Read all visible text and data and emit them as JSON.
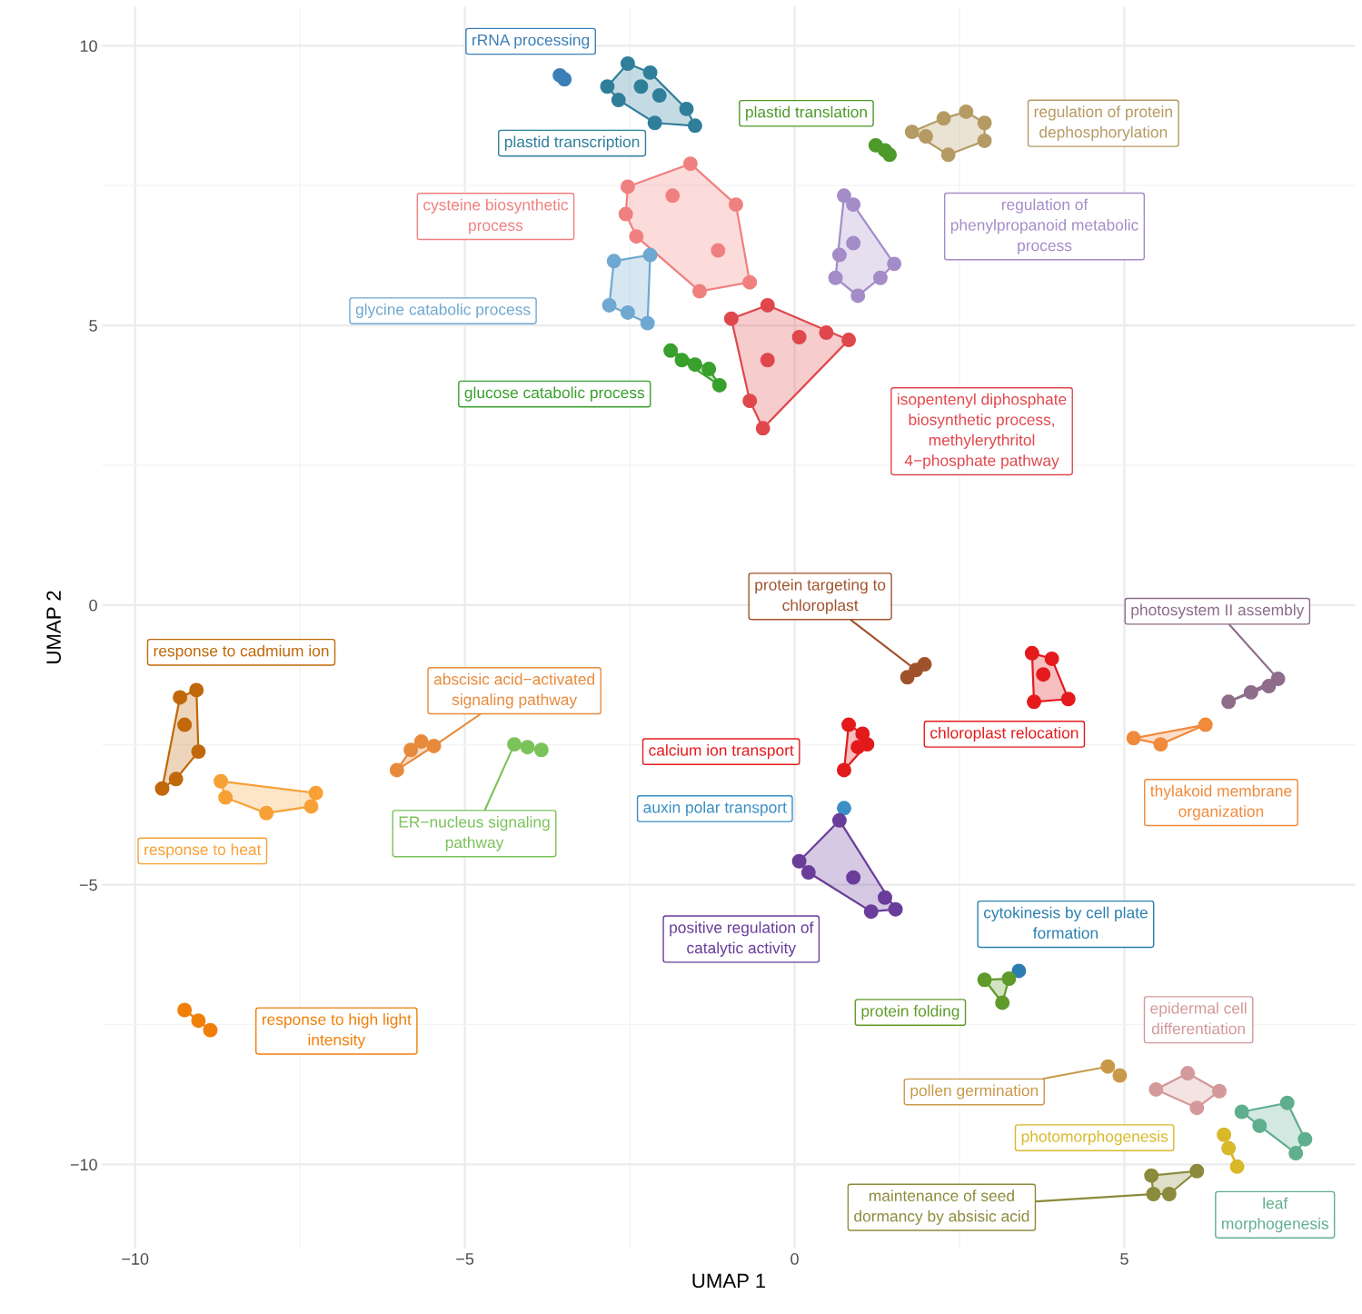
{
  "chart_data": {
    "type": "scatter",
    "xlabel": "UMAP 1",
    "ylabel": "UMAP 2",
    "xlim": [
      -10.5,
      8.5
    ],
    "ylim": [
      -11.5,
      10.7
    ],
    "xticks": [
      {
        "value": -10,
        "label": "−10"
      },
      {
        "value": -5,
        "label": "−5"
      },
      0,
      5
    ],
    "yticks": [
      {
        "value": -10,
        "label": "−10"
      },
      {
        "value": -5,
        "label": "−5"
      },
      0,
      5,
      10
    ],
    "grid": true,
    "legend": false,
    "marker": "circle",
    "series": [
      {
        "color": "#3b7fb8",
        "x": [
          -3.56,
          -3.49
        ],
        "values": [
          9.47,
          9.4
        ]
      },
      {
        "color": "#2f7f9a",
        "x": [
          -2.84,
          -2.53,
          -2.19,
          -2.05,
          -1.64,
          -1.51,
          -2.12,
          -2.67,
          -2.33
        ],
        "values": [
          9.27,
          9.68,
          9.52,
          9.11,
          8.87,
          8.57,
          8.62,
          9.03,
          9.27
        ]
      },
      {
        "color": "#4d9a2a",
        "x": [
          1.23,
          1.37,
          1.44
        ],
        "values": [
          8.22,
          8.13,
          8.05
        ]
      },
      {
        "color": "#b59a63",
        "x": [
          1.78,
          2.26,
          2.6,
          2.88,
          2.88,
          2.33,
          1.99
        ],
        "values": [
          8.46,
          8.7,
          8.82,
          8.62,
          8.3,
          8.05,
          8.38
        ]
      },
      {
        "color": "#f0807f",
        "x": [
          -2.53,
          -1.58,
          -0.89,
          -0.68,
          -1.44,
          -2.4,
          -2.56,
          -1.85,
          -1.16
        ],
        "values": [
          7.48,
          7.89,
          7.16,
          5.77,
          5.61,
          6.59,
          6.99,
          7.32,
          6.34
        ]
      },
      {
        "color": "#a48cc8",
        "x": [
          0.75,
          0.89,
          0.68,
          0.89,
          1.51,
          1.3,
          0.96,
          0.62
        ],
        "values": [
          7.32,
          7.16,
          6.26,
          6.47,
          6.1,
          5.85,
          5.53,
          5.85
        ]
      },
      {
        "color": "#6fa8d0",
        "x": [
          -2.74,
          -2.19,
          -2.23,
          -2.53,
          -2.81
        ],
        "values": [
          6.15,
          6.26,
          5.04,
          5.23,
          5.36
        ]
      },
      {
        "color": "#38a02c",
        "x": [
          -1.88,
          -1.71,
          -1.51,
          -1.3,
          -1.14
        ],
        "values": [
          4.55,
          4.38,
          4.3,
          4.22,
          3.93
        ]
      },
      {
        "color": "#e0474c",
        "x": [
          -0.96,
          -0.41,
          0.82,
          -0.48,
          -0.68,
          0.07,
          -0.41,
          0.48
        ],
        "values": [
          5.12,
          5.36,
          4.74,
          3.16,
          3.65,
          4.79,
          4.38,
          4.87
        ]
      },
      {
        "color": "#a0522d",
        "x": [
          1.71,
          1.84,
          1.97
        ],
        "values": [
          -1.29,
          -1.16,
          -1.06
        ]
      },
      {
        "color": "#e41a1c",
        "x": [
          3.6,
          3.9,
          4.15,
          3.63,
          3.77
        ],
        "values": [
          -0.86,
          -0.96,
          -1.68,
          -1.73,
          -1.24
        ]
      },
      {
        "color": "#8e6c8a",
        "x": [
          6.58,
          6.92,
          7.33,
          7.19
        ],
        "values": [
          -1.73,
          -1.56,
          -1.32,
          -1.45
        ]
      },
      {
        "color": "#f08a3c",
        "x": [
          5.14,
          6.23,
          5.55
        ],
        "values": [
          -2.38,
          -2.14,
          -2.49
        ]
      },
      {
        "color": "#e31a1c",
        "x": [
          0.82,
          1.03,
          0.96,
          0.75,
          1.1
        ],
        "values": [
          -2.14,
          -2.3,
          -2.54,
          -2.95,
          -2.49
        ]
      },
      {
        "color": "#3a8fc4",
        "x": [
          0.75
        ],
        "values": [
          -3.63
        ]
      },
      {
        "color": "#6a3d9a",
        "x": [
          0.68,
          0.07,
          0.21,
          1.16,
          1.53,
          1.37,
          0.89
        ],
        "values": [
          -3.85,
          -4.58,
          -4.78,
          -5.48,
          -5.44,
          -5.23,
          -4.87
        ]
      },
      {
        "color": "#2b7fb0",
        "x": [
          3.4
        ],
        "values": [
          -6.54
        ]
      },
      {
        "color": "#5f9a2a",
        "x": [
          2.88,
          3.25,
          3.15
        ],
        "values": [
          -6.7,
          -6.68,
          -7.11
        ]
      },
      {
        "color": "#d4999a",
        "x": [
          5.48,
          5.96,
          6.44,
          6.1
        ],
        "values": [
          -8.66,
          -8.37,
          -8.69,
          -8.99
        ]
      },
      {
        "color": "#c9994a",
        "x": [
          4.75,
          4.93
        ],
        "values": [
          -8.25,
          -8.41
        ]
      },
      {
        "color": "#5fae8e",
        "x": [
          6.78,
          7.47,
          7.74,
          7.6,
          7.05
        ],
        "values": [
          -9.06,
          -8.9,
          -9.55,
          -9.8,
          -9.31
        ]
      },
      {
        "color": "#d9b82a",
        "x": [
          6.51,
          6.58,
          6.71
        ],
        "values": [
          -9.47,
          -9.71,
          -10.04
        ]
      },
      {
        "color": "#8c8a3c",
        "x": [
          5.41,
          6.1,
          5.68,
          5.44
        ],
        "values": [
          -10.2,
          -10.12,
          -10.53,
          -10.53
        ]
      },
      {
        "color": "#c0680a",
        "x": [
          -9.59,
          -9.32,
          -9.07,
          -9.04,
          -9.38,
          -9.25
        ],
        "values": [
          -3.28,
          -1.65,
          -1.52,
          -2.62,
          -3.11,
          -2.14
        ]
      },
      {
        "color": "#f7a035",
        "x": [
          -8.7,
          -7.26,
          -7.33,
          -8.01,
          -8.63
        ],
        "values": [
          -3.15,
          -3.36,
          -3.6,
          -3.72,
          -3.44
        ]
      },
      {
        "color": "#e88a3c",
        "x": [
          -6.03,
          -5.82,
          -5.66,
          -5.47
        ],
        "values": [
          -2.95,
          -2.59,
          -2.44,
          -2.52
        ]
      },
      {
        "color": "#7ac25a",
        "x": [
          -4.25,
          -4.05,
          -3.84
        ],
        "values": [
          -2.49,
          -2.54,
          -2.59
        ]
      },
      {
        "color": "#f07f0a",
        "x": [
          -9.25,
          -9.04,
          -8.86
        ],
        "values": [
          -7.24,
          -7.43,
          -7.6
        ]
      }
    ],
    "annotations": [
      "rRNA processing",
      "plastid transcription",
      "plastid translation",
      "regulation of protein\ndephosphorylation",
      "cysteine biosynthetic\nprocess",
      "regulation of\nphenylpropanoid metabolic\nprocess",
      "glycine catabolic process",
      "glucose catabolic process",
      "isopentenyl diphosphate\nbiosynthetic process,\nmethylerythritol\n4−phosphate pathway",
      {
        "text": "protein targeting to\nchloroplast",
        "x": 1.84,
        "y": -1.16
      },
      "chloroplast relocation",
      {
        "text": "photosystem II assembly",
        "x": 7.33,
        "y": -1.32
      },
      "thylakoid membrane\norganization",
      "calcium ion transport",
      "auxin polar transport",
      "positive regulation of\ncatalytic activity",
      "cytokinesis by cell plate\nformation",
      "protein folding",
      "epidermal cell\ndifferentiation",
      {
        "text": "pollen germination",
        "x": 4.75,
        "y": -8.25
      },
      "leaf\nmorphogenesis",
      "photomorphogenesis",
      {
        "text": "maintenance of seed\ndormancy by absisic acid",
        "x": 5.44,
        "y": -10.53
      },
      "response to cadmium ion",
      "response to heat",
      {
        "text": "abscisic acid−activated\nsignaling pathway",
        "x": -5.47,
        "y": -2.52
      },
      {
        "text": "ER−nucleus signaling\npathway",
        "x": -4.25,
        "y": -2.49
      },
      "response to high light\nintensity"
    ]
  }
}
